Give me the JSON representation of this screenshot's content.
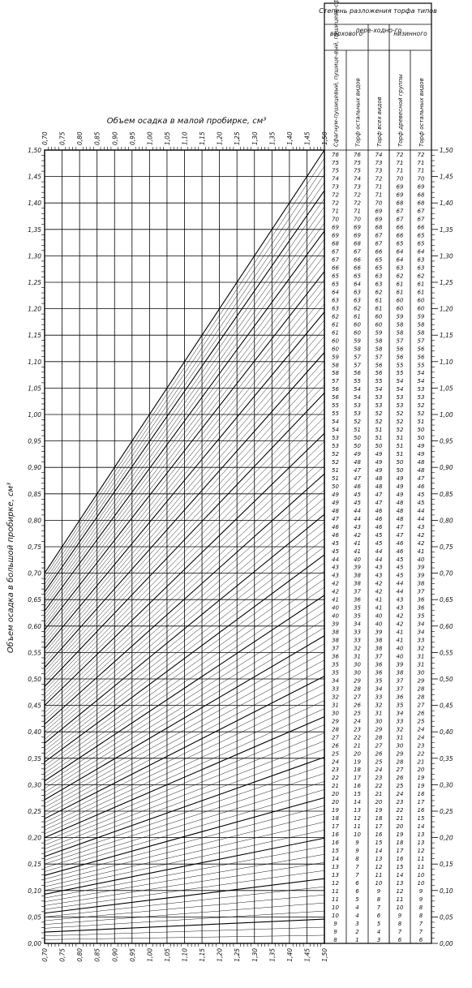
{
  "chart_data": {
    "type": "line",
    "xlabel_top": "Объем осадка в малой пробирке, см³",
    "ylabel": "Объем осадка в большой пробирке, см³",
    "xlim": [
      0.7,
      1.5
    ],
    "ylim": [
      0.0,
      1.5
    ],
    "x_ticks": [
      "0,70",
      "0,75",
      "0,80",
      "0,85",
      "0,90",
      "0,95",
      "1,00",
      "1,05",
      "1,10",
      "1,15",
      "1,20",
      "1,25",
      "1,30",
      "1,35",
      "1,40",
      "1,45",
      "1,50"
    ],
    "y_ticks": [
      "0,00",
      "0,05",
      "0,10",
      "0,15",
      "0,20",
      "0,25",
      "0,30",
      "0,35",
      "0,40",
      "0,45",
      "0,50",
      "0,55",
      "0,60",
      "0,65",
      "0,70",
      "0,75",
      "0,80",
      "0,85",
      "0,90",
      "0,95",
      "1,00",
      "1,05",
      "1,10",
      "1,15",
      "1,20",
      "1,25",
      "1,30",
      "1,35",
      "1,40",
      "1,45",
      "1,50"
    ],
    "grid": true,
    "table": {
      "title": "Степень разложения торфа типов",
      "groups": [
        "верхового",
        "пере-ходно-го",
        "низинного"
      ],
      "columns": [
        "Сфагнум-пушицевый, пушице-вый, пушицево-сфагновый",
        "Торф остальных видов",
        "Торф всех видов",
        "Торф древесной группы",
        "Торф остальных видов"
      ],
      "rows": [
        [
          "76",
          "76",
          "74",
          "72",
          "72"
        ],
        [
          "75",
          "75",
          "73",
          "71",
          "71"
        ],
        [
          "75",
          "75",
          "73",
          "71",
          "71"
        ],
        [
          "74",
          "74",
          "72",
          "70",
          "70"
        ],
        [
          "73",
          "73",
          "71",
          "69",
          "69"
        ],
        [
          "72",
          "72",
          "71",
          "69",
          "68"
        ],
        [
          "72",
          "72",
          "70",
          "68",
          "68"
        ],
        [
          "71",
          "71",
          "69",
          "67",
          "67"
        ],
        [
          "70",
          "70",
          "69",
          "67",
          "67"
        ],
        [
          "69",
          "69",
          "68",
          "66",
          "66"
        ],
        [
          "69",
          "69",
          "67",
          "66",
          "65"
        ],
        [
          "68",
          "68",
          "67",
          "65",
          "65"
        ],
        [
          "67",
          "67",
          "66",
          "64",
          "64"
        ],
        [
          "67",
          "66",
          "65",
          "64",
          "63"
        ],
        [
          "66",
          "66",
          "65",
          "63",
          "63"
        ],
        [
          "65",
          "65",
          "63",
          "62",
          "62"
        ],
        [
          "65",
          "64",
          "63",
          "61",
          "61"
        ],
        [
          "64",
          "63",
          "62",
          "61",
          "61"
        ],
        [
          "63",
          "63",
          "61",
          "60",
          "60"
        ],
        [
          "63",
          "62",
          "61",
          "60",
          "60"
        ],
        [
          "62",
          "61",
          "60",
          "59",
          "59"
        ],
        [
          "61",
          "60",
          "60",
          "58",
          "58"
        ],
        [
          "61",
          "60",
          "59",
          "58",
          "58"
        ],
        [
          "60",
          "59",
          "58",
          "57",
          "57"
        ],
        [
          "60",
          "58",
          "58",
          "56",
          "56"
        ],
        [
          "59",
          "57",
          "57",
          "56",
          "56"
        ],
        [
          "58",
          "57",
          "56",
          "55",
          "55"
        ],
        [
          "58",
          "56",
          "56",
          "55",
          "54"
        ],
        [
          "57",
          "55",
          "55",
          "54",
          "54"
        ],
        [
          "56",
          "54",
          "54",
          "54",
          "53"
        ],
        [
          "56",
          "54",
          "53",
          "53",
          "53"
        ],
        [
          "55",
          "53",
          "53",
          "53",
          "52"
        ],
        [
          "55",
          "53",
          "52",
          "52",
          "52"
        ],
        [
          "54",
          "52",
          "52",
          "52",
          "51"
        ],
        [
          "54",
          "51",
          "51",
          "52",
          "50"
        ],
        [
          "53",
          "50",
          "51",
          "51",
          "50"
        ],
        [
          "53",
          "50",
          "50",
          "51",
          "49"
        ],
        [
          "52",
          "49",
          "49",
          "51",
          "49"
        ],
        [
          "52",
          "48",
          "49",
          "50",
          "48"
        ],
        [
          "51",
          "47",
          "49",
          "50",
          "48"
        ],
        [
          "51",
          "47",
          "48",
          "49",
          "47"
        ],
        [
          "50",
          "46",
          "48",
          "49",
          "46"
        ],
        [
          "49",
          "45",
          "47",
          "49",
          "45"
        ],
        [
          "49",
          "45",
          "47",
          "48",
          "45"
        ],
        [
          "48",
          "44",
          "46",
          "48",
          "44"
        ],
        [
          "47",
          "44",
          "46",
          "48",
          "44"
        ],
        [
          "46",
          "43",
          "46",
          "47",
          "43"
        ],
        [
          "46",
          "42",
          "45",
          "47",
          "42"
        ],
        [
          "45",
          "41",
          "45",
          "46",
          "42"
        ],
        [
          "45",
          "41",
          "44",
          "46",
          "41"
        ],
        [
          "44",
          "40",
          "44",
          "45",
          "40"
        ],
        [
          "43",
          "39",
          "43",
          "45",
          "39"
        ],
        [
          "43",
          "38",
          "43",
          "45",
          "39"
        ],
        [
          "42",
          "38",
          "42",
          "44",
          "38"
        ],
        [
          "42",
          "37",
          "42",
          "44",
          "37"
        ],
        [
          "41",
          "36",
          "41",
          "43",
          "36"
        ],
        [
          "40",
          "35",
          "41",
          "43",
          "36"
        ],
        [
          "40",
          "35",
          "40",
          "42",
          "35"
        ],
        [
          "39",
          "34",
          "40",
          "42",
          "34"
        ],
        [
          "38",
          "33",
          "39",
          "41",
          "34"
        ],
        [
          "38",
          "33",
          "38",
          "41",
          "33"
        ],
        [
          "37",
          "32",
          "38",
          "40",
          "32"
        ],
        [
          "36",
          "31",
          "37",
          "40",
          "31"
        ],
        [
          "35",
          "30",
          "36",
          "39",
          "31"
        ],
        [
          "35",
          "30",
          "36",
          "38",
          "30"
        ],
        [
          "34",
          "29",
          "35",
          "37",
          "29"
        ],
        [
          "33",
          "28",
          "34",
          "37",
          "28"
        ],
        [
          "32",
          "27",
          "33",
          "36",
          "28"
        ],
        [
          "31",
          "26",
          "32",
          "35",
          "27"
        ],
        [
          "30",
          "25",
          "31",
          "34",
          "26"
        ],
        [
          "29",
          "24",
          "30",
          "33",
          "25"
        ],
        [
          "28",
          "23",
          "29",
          "32",
          "24"
        ],
        [
          "27",
          "22",
          "28",
          "31",
          "24"
        ],
        [
          "26",
          "21",
          "27",
          "30",
          "23"
        ],
        [
          "25",
          "20",
          "26",
          "29",
          "22"
        ],
        [
          "24",
          "19",
          "25",
          "28",
          "21"
        ],
        [
          "23",
          "18",
          "24",
          "27",
          "20"
        ],
        [
          "22",
          "17",
          "23",
          "26",
          "19"
        ],
        [
          "21",
          "16",
          "22",
          "25",
          "19"
        ],
        [
          "20",
          "15",
          "21",
          "24",
          "18"
        ],
        [
          "20",
          "14",
          "20",
          "23",
          "17"
        ],
        [
          "19",
          "13",
          "19",
          "22",
          "16"
        ],
        [
          "18",
          "12",
          "18",
          "21",
          "15"
        ],
        [
          "17",
          "11",
          "17",
          "20",
          "14"
        ],
        [
          "16",
          "10",
          "16",
          "19",
          "13"
        ],
        [
          "16",
          "9",
          "15",
          "18",
          "13"
        ],
        [
          "15",
          "9",
          "14",
          "17",
          "12"
        ],
        [
          "14",
          "8",
          "13",
          "16",
          "11"
        ],
        [
          "13",
          "7",
          "12",
          "15",
          "11"
        ],
        [
          "13",
          "7",
          "11",
          "14",
          "10"
        ],
        [
          "12",
          "6",
          "10",
          "13",
          "10"
        ],
        [
          "11",
          "6",
          "9",
          "12",
          "9"
        ],
        [
          "11",
          "5",
          "8",
          "11",
          "9"
        ],
        [
          "10",
          "4",
          "7",
          "10",
          "8"
        ],
        [
          "10",
          "4",
          "6",
          "9",
          "8"
        ],
        [
          "9",
          "3",
          "5",
          "8",
          "7"
        ],
        [
          "9",
          "2",
          "4",
          "7",
          "7"
        ],
        [
          "8",
          "1",
          "3",
          "6",
          "6"
        ]
      ]
    }
  }
}
